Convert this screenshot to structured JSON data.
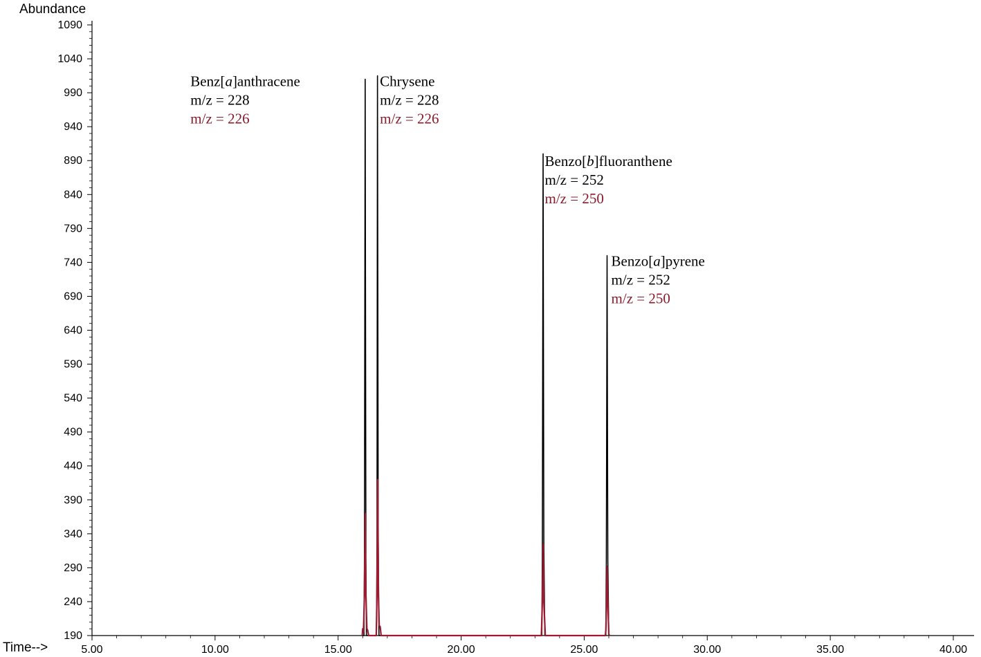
{
  "chart_data": {
    "type": "line",
    "ylabel": "Abundance",
    "xlabel": "Time-->",
    "xlim": [
      5.0,
      40.0
    ],
    "ylim": [
      190,
      1090
    ],
    "xticks": [
      "5.00",
      "10.00",
      "15.00",
      "20.00",
      "25.00",
      "30.00",
      "35.00",
      "40.00"
    ],
    "yticks": [
      "190",
      "240",
      "290",
      "340",
      "390",
      "440",
      "490",
      "540",
      "590",
      "640",
      "690",
      "740",
      "790",
      "840",
      "890",
      "940",
      "990",
      "1040",
      "1090"
    ],
    "grid": false,
    "colors": {
      "black_series": "#000000",
      "red_series": "#9b1b30",
      "annotation_red": "#8b1a2b"
    },
    "series": [
      {
        "color_key": "black",
        "points": [
          [
            15.98,
            190
          ],
          [
            16.05,
            190
          ],
          [
            16.07,
            300
          ],
          [
            16.1,
            1010
          ],
          [
            16.13,
            300
          ],
          [
            16.15,
            190
          ],
          [
            16.5,
            190
          ],
          [
            16.56,
            190
          ],
          [
            16.58,
            330
          ],
          [
            16.6,
            1015
          ],
          [
            16.63,
            330
          ],
          [
            16.66,
            190
          ],
          [
            23.22,
            190
          ],
          [
            23.28,
            190
          ],
          [
            23.3,
            320
          ],
          [
            23.33,
            900
          ],
          [
            23.36,
            320
          ],
          [
            23.4,
            190
          ],
          [
            25.85,
            190
          ],
          [
            25.88,
            190
          ],
          [
            25.9,
            300
          ],
          [
            25.93,
            750
          ],
          [
            25.96,
            300
          ],
          [
            26.0,
            190
          ]
        ]
      },
      {
        "color_key": "red",
        "points": [
          [
            15.98,
            190
          ],
          [
            16.0,
            200
          ],
          [
            16.03,
            195
          ],
          [
            16.07,
            250
          ],
          [
            16.1,
            370
          ],
          [
            16.13,
            250
          ],
          [
            16.17,
            200
          ],
          [
            16.2,
            198
          ],
          [
            16.24,
            190
          ],
          [
            16.55,
            190
          ],
          [
            16.58,
            250
          ],
          [
            16.61,
            420
          ],
          [
            16.64,
            250
          ],
          [
            16.67,
            205
          ],
          [
            16.71,
            203
          ],
          [
            16.75,
            190
          ],
          [
            23.26,
            190
          ],
          [
            23.3,
            240
          ],
          [
            23.33,
            325
          ],
          [
            23.36,
            240
          ],
          [
            23.42,
            190
          ],
          [
            25.86,
            190
          ],
          [
            25.88,
            198
          ],
          [
            25.91,
            240
          ],
          [
            25.93,
            292
          ],
          [
            25.96,
            240
          ],
          [
            26.0,
            192
          ],
          [
            26.03,
            190
          ]
        ]
      }
    ],
    "annotations": [
      {
        "x": 9.0,
        "y": 1000,
        "lines": [
          {
            "parts": [
              {
                "t": "Benz["
              },
              {
                "t": "a",
                "italic": true
              },
              {
                "t": "]anthracene"
              }
            ],
            "color": "black"
          },
          {
            "parts": [
              {
                "t": "m/z = 228"
              }
            ],
            "color": "black"
          },
          {
            "parts": [
              {
                "t": "m/z = 226"
              }
            ],
            "color": "red"
          }
        ]
      },
      {
        "x": 16.7,
        "y": 1000,
        "lines": [
          {
            "parts": [
              {
                "t": "Chrysene"
              }
            ],
            "color": "black"
          },
          {
            "parts": [
              {
                "t": "m/z = 228"
              }
            ],
            "color": "black"
          },
          {
            "parts": [
              {
                "t": "m/z = 226"
              }
            ],
            "color": "red"
          }
        ]
      },
      {
        "x": 23.4,
        "y": 882,
        "lines": [
          {
            "parts": [
              {
                "t": "Benzo["
              },
              {
                "t": "b",
                "italic": true
              },
              {
                "t": "]fluoranthene"
              }
            ],
            "color": "black"
          },
          {
            "parts": [
              {
                "t": "m/z = 252"
              }
            ],
            "color": "black"
          },
          {
            "parts": [
              {
                "t": "m/z = 250"
              }
            ],
            "color": "red"
          }
        ]
      },
      {
        "x": 26.1,
        "y": 735,
        "lines": [
          {
            "parts": [
              {
                "t": "Benzo["
              },
              {
                "t": "a",
                "italic": true
              },
              {
                "t": "]pyrene"
              }
            ],
            "color": "black"
          },
          {
            "parts": [
              {
                "t": "m/z = 252"
              }
            ],
            "color": "black"
          },
          {
            "parts": [
              {
                "t": "m/z = 250"
              }
            ],
            "color": "red"
          }
        ]
      }
    ]
  }
}
